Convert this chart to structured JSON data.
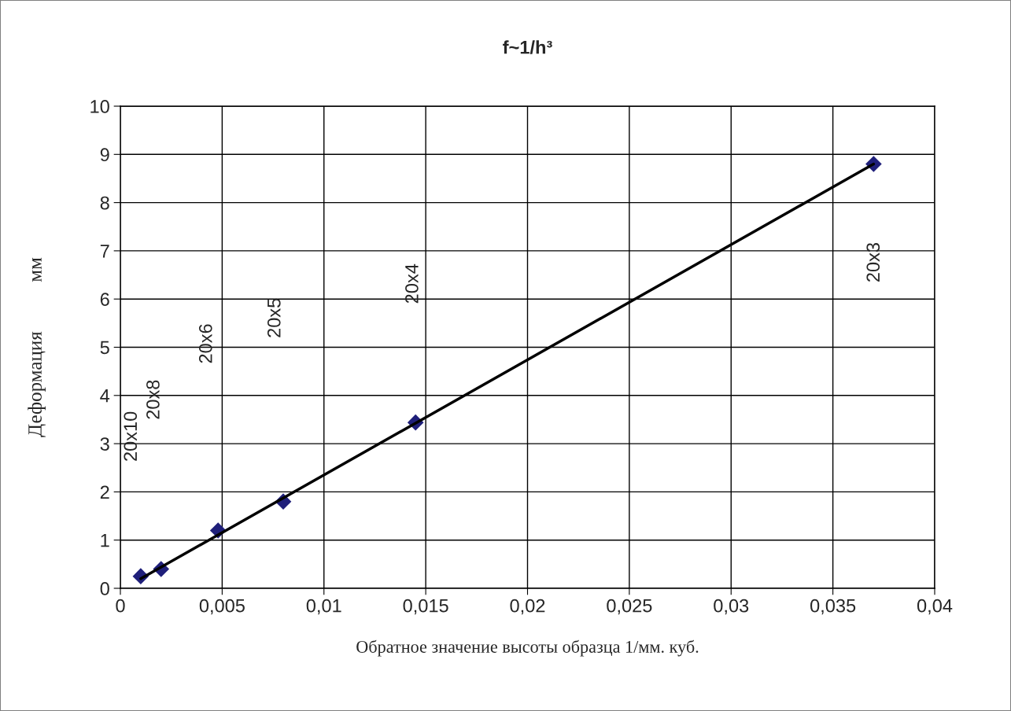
{
  "chart_data": {
    "type": "scatter",
    "title": "f~1/h³",
    "xlabel": "Обратное значение высоты образца 1/мм. куб.",
    "ylabel": "Деформация          мм",
    "x": [
      0.001,
      0.002,
      0.0048,
      0.008,
      0.0145,
      0.037
    ],
    "series": [
      {
        "color": "#1f1f7a",
        "marker": "diamond",
        "values": [
          0.25,
          0.4,
          1.2,
          1.8,
          3.44,
          8.8
        ]
      },
      {
        "type": "line",
        "color": "#000000",
        "x": [
          0.001,
          0.037
        ],
        "values": [
          0.2,
          8.8
        ]
      }
    ],
    "annotations": [
      "20x10",
      "20x8",
      "20x6",
      "20x5",
      "20x4",
      "20x3"
    ],
    "xlim": [
      0,
      0.04
    ],
    "ylim": [
      0,
      10
    ],
    "xticks": [
      0,
      {
        "value": 0.005,
        "label": "0,005"
      },
      {
        "value": 0.01,
        "label": "0,01"
      },
      {
        "value": 0.015,
        "label": "0,015"
      },
      {
        "value": 0.02,
        "label": "0,02"
      },
      {
        "value": 0.025,
        "label": "0,025"
      },
      {
        "value": 0.03,
        "label": "0,03"
      },
      {
        "value": 0.035,
        "label": "0,035"
      },
      {
        "value": 0.04,
        "label": "0,04"
      }
    ],
    "yticks": [
      0,
      1,
      2,
      3,
      4,
      5,
      6,
      7,
      8,
      9,
      10
    ],
    "grid": true,
    "legend": false
  }
}
